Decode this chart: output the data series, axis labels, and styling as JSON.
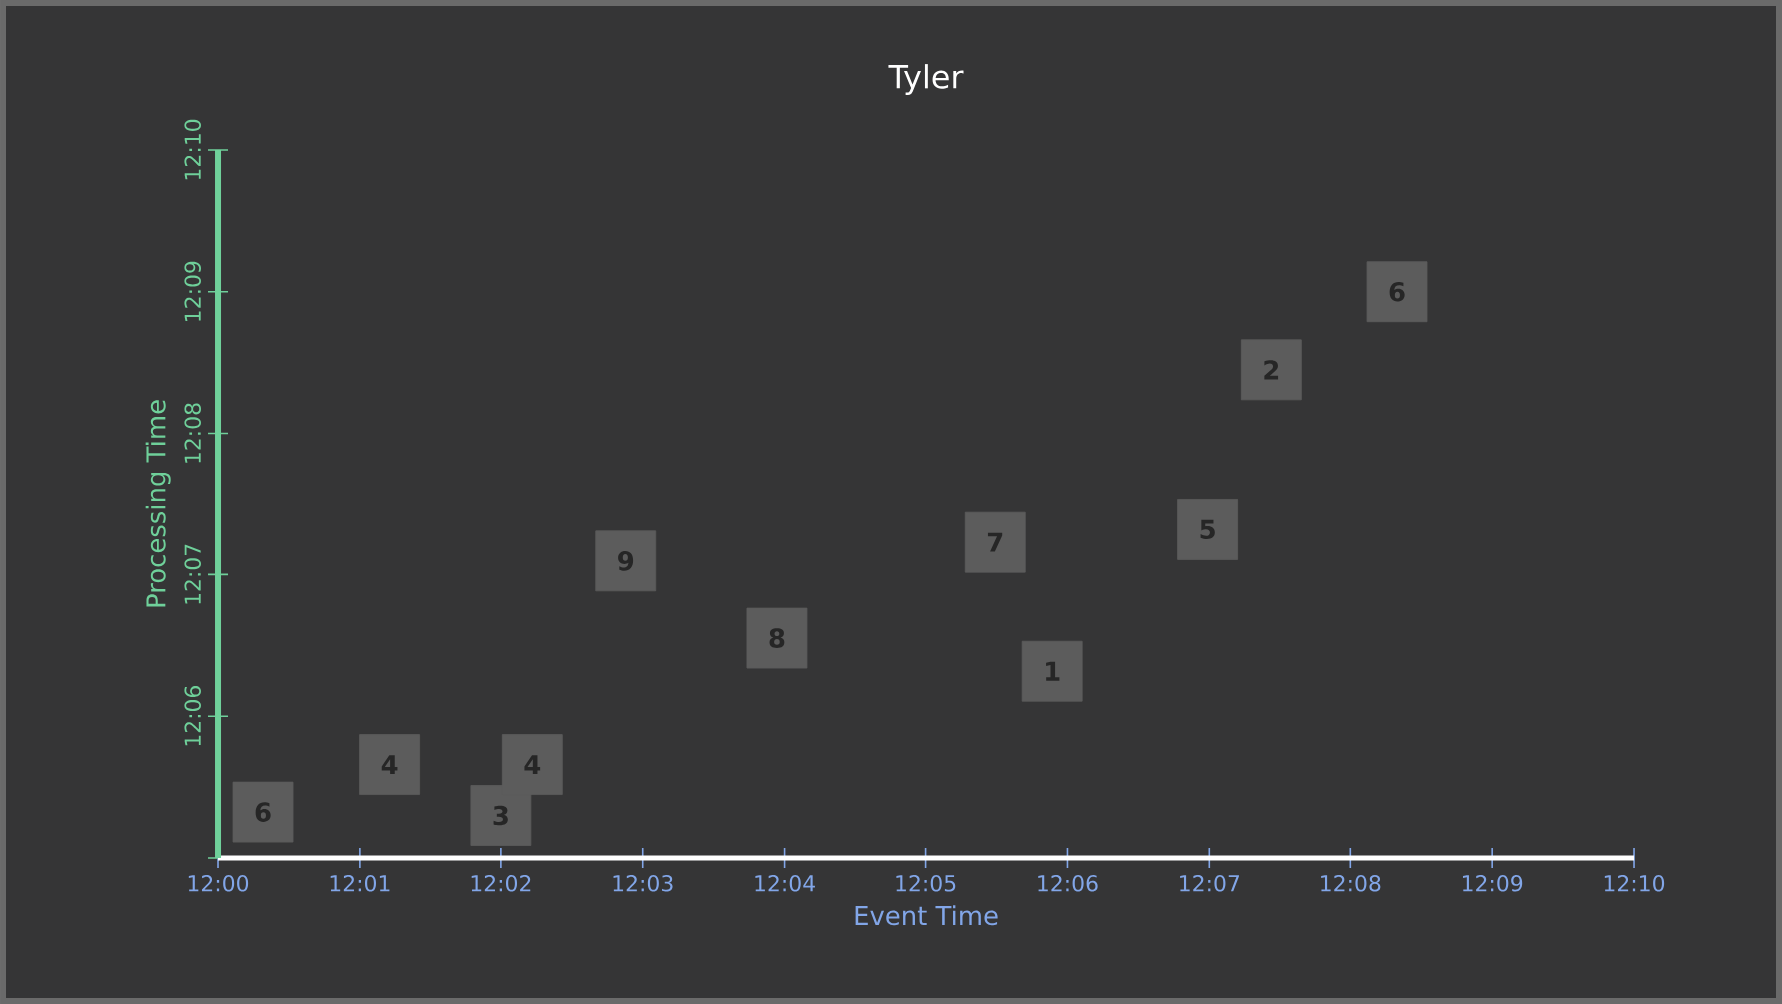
{
  "chart_data": {
    "type": "scatter",
    "title": "Tyler",
    "xlabel": "Event Time",
    "ylabel": "Processing Time",
    "x": [
      12.0053,
      12.0202,
      12.0333,
      12.037,
      12.048,
      12.0658,
      12.0915,
      12.0982,
      12.1165,
      12.124,
      12.1388
    ],
    "values": [
      12.0887,
      12.0943,
      12.0883,
      12.0943,
      12.1183,
      12.1092,
      12.1205,
      12.1053,
      12.122,
      12.1408,
      12.15
    ],
    "annotations": [
      {
        "text": "6",
        "x": 12.0053,
        "y": 12.0887
      },
      {
        "text": "4",
        "x": 12.0202,
        "y": 12.0943
      },
      {
        "text": "3",
        "x": 12.0333,
        "y": 12.0883
      },
      {
        "text": "4",
        "x": 12.037,
        "y": 12.0943
      },
      {
        "text": "9",
        "x": 12.048,
        "y": 12.1183
      },
      {
        "text": "8",
        "x": 12.0658,
        "y": 12.1092
      },
      {
        "text": "7",
        "x": 12.0915,
        "y": 12.1205
      },
      {
        "text": "1",
        "x": 12.0982,
        "y": 12.1053
      },
      {
        "text": "5",
        "x": 12.1165,
        "y": 12.122
      },
      {
        "text": "2",
        "x": 12.124,
        "y": 12.1408
      },
      {
        "text": "6",
        "x": 12.1388,
        "y": 12.15
      }
    ],
    "color": "#5c5c5c",
    "marker": "square",
    "xlim": [
      12.0,
      12.1667
    ],
    "ylim": [
      12.0833,
      12.1667
    ],
    "xticks": [
      {
        "value": 12.0,
        "label": "12:00"
      },
      {
        "value": 12.0167,
        "label": "12:01"
      },
      {
        "value": 12.0333,
        "label": "12:02"
      },
      {
        "value": 12.05,
        "label": "12:03"
      },
      {
        "value": 12.0667,
        "label": "12:04"
      },
      {
        "value": 12.0833,
        "label": "12:05"
      },
      {
        "value": 12.1,
        "label": "12:06"
      },
      {
        "value": 12.1167,
        "label": "12:07"
      },
      {
        "value": 12.1333,
        "label": "12:08"
      },
      {
        "value": 12.15,
        "label": "12:09"
      },
      {
        "value": 12.1667,
        "label": "12:10"
      }
    ],
    "yticks": [
      {
        "value": 12.0833,
        "label": null
      },
      {
        "value": 12.1,
        "label": "12:06"
      },
      {
        "value": 12.1167,
        "label": "12:07"
      },
      {
        "value": 12.1333,
        "label": "12:08"
      },
      {
        "value": 12.15,
        "label": "12:09"
      },
      {
        "value": 12.1667,
        "label": "12:10"
      }
    ]
  }
}
